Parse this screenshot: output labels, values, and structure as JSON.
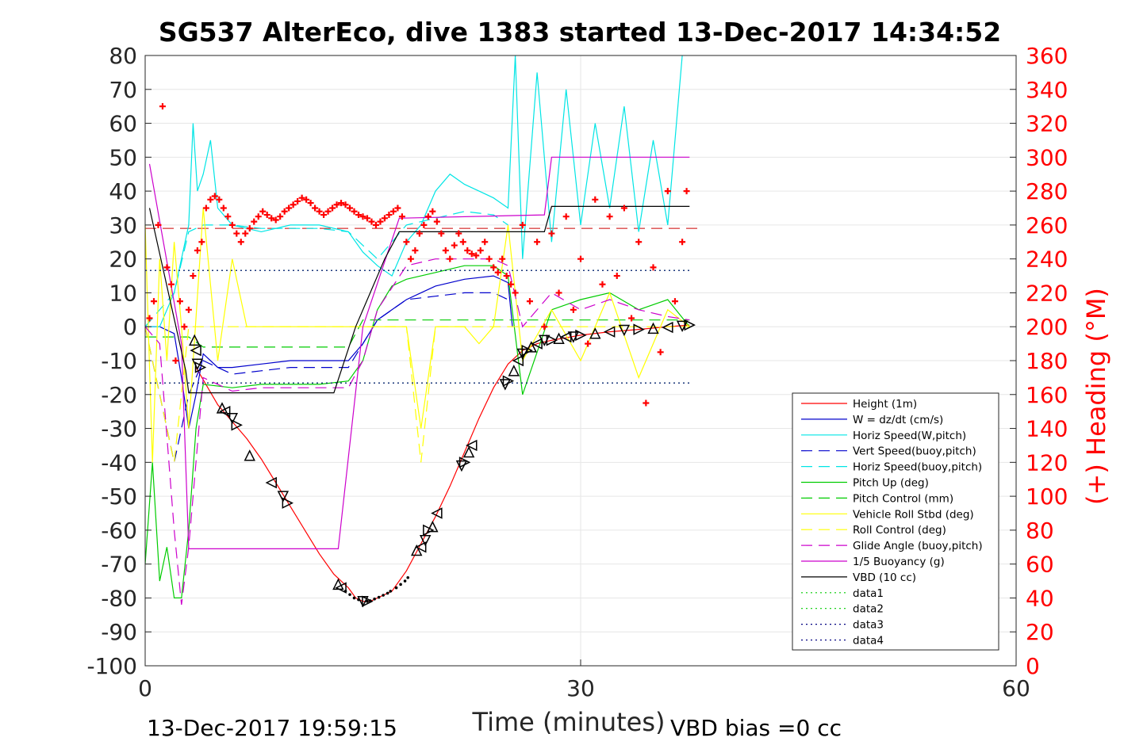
{
  "figure": {
    "title": "SG537 AlterEco, dive 1383 started 13-Dec-2017 14:34:52",
    "footer_left": "13-Dec-2017 19:59:15",
    "footer_right": "VBD bias =0 cc"
  },
  "chart_data": {
    "type": "line",
    "title": "SG537 AlterEco, dive 1383 started 13-Dec-2017 14:34:52",
    "xlabel": "Time (minutes)",
    "ylabel": "",
    "y2label": "(+) Heading (°M)",
    "xlim": [
      0,
      60
    ],
    "ylim": [
      -100,
      80
    ],
    "y2lim": [
      0,
      360
    ],
    "xticks": [
      0,
      30,
      60
    ],
    "yticks": [
      -100,
      -90,
      -80,
      -70,
      -60,
      -50,
      -40,
      -30,
      -20,
      -10,
      0,
      10,
      20,
      30,
      40,
      50,
      60,
      70,
      80
    ],
    "y2ticks": [
      0,
      20,
      40,
      60,
      80,
      100,
      120,
      140,
      160,
      180,
      200,
      220,
      240,
      260,
      280,
      300,
      320,
      340,
      360
    ],
    "grid": true,
    "legend_position": "bottom-right",
    "series": [
      {
        "name": "Height (1m)",
        "color": "#ff0000",
        "dash": "solid",
        "x": [
          3.5,
          5,
          6,
          7,
          8,
          9,
          10,
          11,
          12,
          13,
          14,
          14.5,
          15,
          15.5,
          16,
          17,
          18,
          19,
          20,
          21,
          22,
          23,
          24,
          25,
          26,
          27,
          28,
          30,
          32,
          34,
          36,
          37.5
        ],
        "y": [
          -12,
          -23,
          -28,
          -33,
          -39,
          -46,
          -53,
          -60,
          -67,
          -73,
          -77,
          -80,
          -81,
          -81,
          -80,
          -78,
          -72,
          -64,
          -56,
          -47,
          -37,
          -27,
          -18,
          -11,
          -7,
          -5,
          -4,
          -2.5,
          -1.5,
          -0.8,
          0,
          0.5
        ]
      },
      {
        "name": "W = dz/dt (cm/s)",
        "color": "#0000cc",
        "dash": "solid",
        "x": [
          0,
          1,
          2,
          2.5,
          3,
          3.5,
          4,
          5,
          6,
          8,
          10,
          12,
          13,
          14,
          15,
          16,
          17,
          18,
          19,
          20,
          22,
          24,
          25,
          25.3
        ],
        "y": [
          0,
          0,
          -2,
          -15,
          -30,
          -20,
          -8,
          -12,
          -12,
          -11,
          -10,
          -10,
          -10,
          -10,
          -5,
          2,
          5,
          8,
          10,
          12,
          14,
          15,
          13,
          0
        ]
      },
      {
        "name": "Horiz Speed(W,pitch)",
        "color": "#00e5e5",
        "dash": "solid",
        "x": [
          0,
          1,
          2,
          3,
          3.3,
          3.6,
          4,
          4.5,
          5,
          6,
          8,
          10,
          12,
          14,
          15,
          16,
          17,
          18,
          19,
          20,
          21,
          22,
          23,
          24,
          25,
          25.5,
          26,
          27,
          28,
          29,
          30,
          31,
          32,
          33,
          34,
          35,
          36,
          37
        ],
        "y": [
          0,
          0,
          10,
          30,
          60,
          40,
          45,
          55,
          35,
          30,
          28,
          30,
          30,
          28,
          22,
          18,
          15,
          25,
          30,
          40,
          45,
          42,
          40,
          38,
          35,
          80,
          20,
          75,
          25,
          70,
          30,
          60,
          35,
          65,
          28,
          55,
          30,
          80
        ]
      },
      {
        "name": "Vert Speed(buoy,pitch)",
        "color": "#0000cc",
        "dash": "dashed",
        "x": [
          0,
          2,
          3,
          4,
          6,
          8,
          10,
          12,
          14,
          15,
          16,
          18,
          20,
          22,
          24,
          25
        ],
        "y": [
          0,
          -40,
          -20,
          -10,
          -14,
          -13,
          -12,
          -12,
          -12,
          -5,
          2,
          8,
          9,
          10,
          10,
          8
        ]
      },
      {
        "name": "Horiz Speed(buoy,pitch)",
        "color": "#00e5e5",
        "dash": "dashed",
        "x": [
          0,
          2,
          3,
          4,
          6,
          8,
          10,
          12,
          14,
          16,
          18,
          20,
          22,
          24,
          25
        ],
        "y": [
          0,
          10,
          28,
          30,
          30,
          29,
          29,
          29,
          28,
          20,
          30,
          32,
          34,
          33,
          30
        ]
      },
      {
        "name": "Pitch Up (deg)",
        "color": "#00cc00",
        "dash": "solid",
        "x": [
          0,
          0.5,
          1,
          1.5,
          2,
          2.5,
          3,
          3.5,
          4,
          6,
          8,
          10,
          12,
          14,
          15,
          16,
          17,
          18,
          20,
          22,
          24,
          25,
          26,
          28,
          30,
          32,
          34,
          36,
          37.5
        ],
        "y": [
          -70,
          -40,
          -75,
          -65,
          -80,
          -80,
          -60,
          -30,
          -17,
          -18,
          -17,
          -17,
          -17,
          -16,
          -10,
          5,
          12,
          14,
          16,
          18,
          18,
          15,
          -20,
          5,
          8,
          10,
          5,
          8,
          0
        ]
      },
      {
        "name": "Pitch Control (mm)",
        "color": "#00cc00",
        "dash": "dashed",
        "x": [
          0,
          3,
          4,
          14,
          15,
          16,
          25,
          26,
          37.5
        ],
        "y": [
          -3,
          -3,
          -6,
          -6,
          2,
          2,
          2,
          2,
          2
        ]
      },
      {
        "name": "Vehicle Roll Stbd (deg)",
        "color": "#ffff00",
        "dash": "solid",
        "x": [
          0,
          0.5,
          1,
          1.5,
          2,
          2.5,
          3,
          4,
          5,
          6,
          7,
          8,
          10,
          12,
          14,
          16,
          18,
          19,
          20,
          21,
          22,
          23,
          24,
          25,
          26,
          28,
          30,
          32,
          34,
          36,
          37.5
        ],
        "y": [
          30,
          -40,
          20,
          -10,
          25,
          0,
          -30,
          35,
          -10,
          20,
          0,
          0,
          0,
          0,
          0,
          0,
          0,
          -30,
          0,
          0,
          0,
          -5,
          0,
          30,
          -10,
          5,
          -10,
          10,
          -15,
          5,
          0
        ]
      },
      {
        "name": "Roll Control (deg)",
        "color": "#ffff00",
        "dash": "dashed",
        "x": [
          0,
          2,
          3,
          4,
          8,
          14,
          16,
          18,
          19,
          20,
          22,
          25,
          37.5
        ],
        "y": [
          0,
          -40,
          0,
          0,
          0,
          0,
          0,
          0,
          -40,
          0,
          0,
          0,
          0
        ]
      },
      {
        "name": "Glide Angle (buoy,pitch)",
        "color": "#cc00cc",
        "dash": "dashed",
        "x": [
          0,
          1,
          2,
          2.5,
          3,
          4,
          6,
          8,
          10,
          12,
          14,
          15,
          16,
          18,
          20,
          22,
          24,
          25,
          26,
          28,
          30,
          32,
          34,
          36,
          37.5
        ],
        "y": [
          0,
          -5,
          -60,
          -82,
          -65,
          -15,
          -19,
          -18,
          -18,
          -18,
          -18,
          -10,
          5,
          18,
          20,
          20,
          20,
          18,
          0,
          10,
          5,
          8,
          5,
          3,
          2
        ]
      },
      {
        "name": "1/5 Buoyancy (g)",
        "color": "#cc00cc",
        "dash": "solid",
        "x": [
          0.3,
          2.5,
          3,
          13.3,
          15,
          17.5,
          27.5,
          28,
          37.5
        ],
        "y": [
          48,
          -5,
          -65.5,
          -65.5,
          0,
          32,
          33,
          50,
          50
        ]
      },
      {
        "name": "VBD (10 cc)",
        "color": "#000000",
        "dash": "solid",
        "x": [
          0.3,
          2.8,
          3,
          13,
          14.5,
          16.5,
          17.5,
          27.5,
          28,
          37.5
        ],
        "y": [
          35,
          -13,
          -19.5,
          -19.5,
          0,
          20,
          28,
          28,
          35.5,
          35.5
        ]
      },
      {
        "name": "data1",
        "color": "#00cc00",
        "dash": "dotted",
        "x": [
          0,
          37.5
        ],
        "y": [
          16.6,
          16.6
        ]
      },
      {
        "name": "data2",
        "color": "#00cc00",
        "dash": "dotted",
        "x": [
          0,
          37.5
        ],
        "y": [
          -16.6,
          -16.6
        ]
      },
      {
        "name": "data3",
        "color": "#000080",
        "dash": "dotted",
        "x": [
          0,
          37.5
        ],
        "y": [
          16.6,
          16.6
        ]
      },
      {
        "name": "data4",
        "color": "#000080",
        "dash": "dotted",
        "x": [
          0,
          37.5
        ],
        "y": [
          -16.6,
          -16.6
        ]
      }
    ],
    "reference_lines": [
      {
        "color": "#cc0000",
        "dash": "dashed",
        "axis": "right",
        "y": 258
      }
    ],
    "heading_points": {
      "color": "#ff0000",
      "axis": "right",
      "x": [
        0.3,
        0.6,
        0.9,
        1.2,
        1.5,
        1.8,
        2.1,
        2.4,
        2.7,
        3.0,
        3.3,
        3.6,
        3.9,
        4.2,
        4.5,
        4.8,
        5.1,
        5.4,
        5.7,
        6.0,
        6.3,
        6.6,
        6.9,
        7.2,
        7.5,
        7.8,
        8.1,
        8.4,
        8.7,
        9.0,
        9.3,
        9.6,
        9.9,
        10.2,
        10.5,
        10.8,
        11.1,
        11.4,
        11.7,
        12.0,
        12.3,
        12.6,
        12.9,
        13.2,
        13.5,
        13.8,
        14.1,
        14.4,
        14.7,
        15.0,
        15.3,
        15.6,
        15.9,
        16.2,
        16.5,
        16.8,
        17.1,
        17.4,
        17.7,
        18.0,
        18.3,
        18.6,
        18.9,
        19.2,
        19.5,
        19.8,
        20.1,
        20.4,
        20.7,
        21.0,
        21.3,
        21.6,
        21.9,
        22.2,
        22.5,
        22.8,
        23.1,
        23.4,
        23.7,
        24.0,
        24.3,
        24.6,
        24.9,
        25.2,
        25.5,
        26.0,
        26.5,
        27.0,
        27.5,
        28.0,
        28.5,
        29.0,
        29.5,
        30.0,
        30.5,
        31.0,
        31.5,
        32.0,
        32.5,
        33.0,
        33.5,
        34.0,
        34.5,
        35.0,
        35.5,
        36.0,
        36.5,
        37.0,
        37.3
      ],
      "y": [
        205,
        215,
        260,
        330,
        235,
        225,
        180,
        215,
        200,
        210,
        230,
        245,
        250,
        270,
        275,
        277,
        275,
        270,
        265,
        260,
        255,
        250,
        255,
        258,
        262,
        265,
        268,
        266,
        264,
        263,
        265,
        268,
        270,
        272,
        274,
        276,
        275,
        273,
        270,
        268,
        266,
        268,
        270,
        272,
        273,
        272,
        270,
        268,
        266,
        265,
        264,
        262,
        260,
        262,
        264,
        266,
        268,
        270,
        265,
        250,
        240,
        245,
        255,
        260,
        265,
        268,
        262,
        255,
        245,
        240,
        248,
        255,
        250,
        245,
        243,
        242,
        245,
        250,
        240,
        235,
        232,
        240,
        230,
        225,
        220,
        260,
        215,
        250,
        200,
        255,
        220,
        265,
        210,
        240,
        190,
        275,
        225,
        265,
        230,
        270,
        205,
        250,
        155,
        235,
        185,
        280,
        215,
        250,
        280
      ]
    },
    "markers": {
      "color": "#000000",
      "shapes": [
        "up-triangle",
        "left-triangle",
        "down-triangle",
        "right-triangle"
      ],
      "x": [
        3.4,
        3.5,
        3.6,
        3.8,
        5.3,
        5.5,
        6.0,
        6.3,
        7.2,
        8.7,
        9.5,
        9.8,
        13.3,
        13.5,
        15.0,
        15.3,
        18.7,
        19.0,
        19.3,
        19.5,
        19.8,
        20.1,
        21.8,
        22.0,
        22.3,
        22.5,
        24.8,
        25.0,
        25.4,
        25.7,
        26.0,
        26.3,
        26.6,
        27.0,
        27.5,
        28.0,
        28.5,
        29.0,
        29.5,
        30.0,
        31.0,
        32.0,
        33.0,
        34.0,
        35.0,
        36.0,
        37.0,
        37.5
      ],
      "y": [
        -4,
        -7,
        -11,
        -12,
        -24,
        -25,
        -27,
        -29,
        -38,
        -46,
        -50,
        -52,
        -76,
        -77,
        -81,
        -81,
        -66,
        -65,
        -63,
        -60,
        -59,
        -55,
        -41,
        -40,
        -37,
        -35,
        -17,
        -16,
        -13,
        -10,
        -8,
        -7,
        -6,
        -5,
        -4,
        -4,
        -3.5,
        -3,
        -3,
        -2.5,
        -2,
        -1.5,
        -1,
        -0.8,
        -0.5,
        -0.2,
        0.2,
        0.5
      ]
    },
    "dots": {
      "color": "#000000",
      "x": [
        13.8,
        14.1,
        14.4,
        14.7,
        15.3,
        15.5,
        15.8,
        16.1,
        16.4,
        16.7,
        16.9
      ],
      "y": [
        -78,
        -79,
        -80,
        -80.5,
        -81,
        -80.8,
        -80.3,
        -79.8,
        -79.2,
        -78.6,
        -78
      ]
    },
    "dots_tail": {
      "x": [
        17.3,
        17.6,
        17.9,
        18.1
      ],
      "y": [
        -77,
        -76,
        -75,
        -74
      ]
    }
  }
}
